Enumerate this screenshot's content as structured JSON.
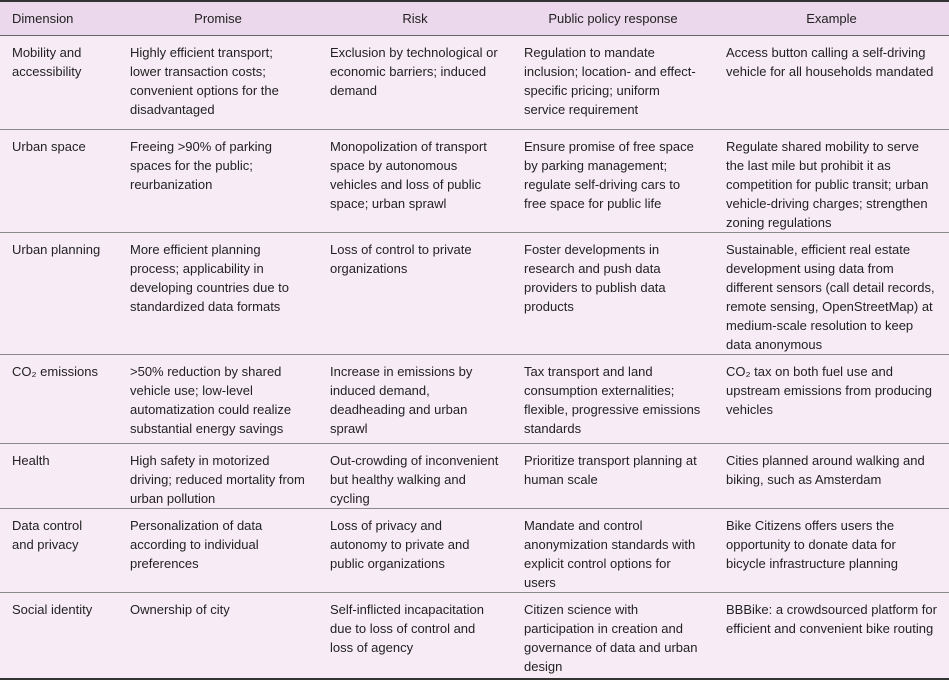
{
  "table": {
    "headers": [
      "Dimension",
      "Promise",
      "Risk",
      "Public policy response",
      "Example"
    ],
    "rows": [
      {
        "dimension": "Mobility and accessibility",
        "promise": "Highly efficient transport; lower transaction costs; convenient options for the disadvantaged",
        "risk": "Exclusion by technological or economic barriers; induced demand",
        "policy": "Regulation to mandate inclusion; location- and effect-specific pricing; uniform service requirement",
        "example": "Access button calling a self-driving vehicle for all households mandated"
      },
      {
        "dimension": "Urban space",
        "promise": "Freeing >90% of parking spaces for the public; reurbanization",
        "risk": "Monopolization of transport space by autonomous vehicles and loss of public space; urban sprawl",
        "policy": "Ensure promise of free space by parking management; regulate self-driving cars to free space for public life",
        "example": "Regulate shared mobility to serve the last mile but prohibit it as competition for public transit; urban vehicle-driving charges; strengthen zoning regulations"
      },
      {
        "dimension": "Urban planning",
        "promise": "More efficient planning process; applicability in developing countries due to standardized data formats",
        "risk": "Loss of control to private organizations",
        "policy": "Foster developments in research and push data providers to publish data products",
        "example": "Sustainable, efficient real estate development using data from different sensors (call detail records, remote sensing, OpenStreetMap) at medium-scale resolution to keep data anonymous"
      },
      {
        "dimension": "CO₂ emissions",
        "promise": ">50% reduction by shared vehicle use; low-level automatization could realize substantial energy savings",
        "risk": "Increase in emissions by induced demand, deadheading and urban sprawl",
        "policy": "Tax transport and land consumption externalities; flexible, progressive emissions standards",
        "example": "CO₂ tax on both fuel use and upstream emissions from producing vehicles"
      },
      {
        "dimension": "Health",
        "promise": "High safety in motorized driving; reduced mortality from urban pollution",
        "risk": "Out-crowding of inconvenient but healthy walking and cycling",
        "policy": "Prioritize transport planning at human scale",
        "example": "Cities planned around walking and biking, such as Amsterdam"
      },
      {
        "dimension": "Data control and privacy",
        "promise": "Personalization of data according to individual preferences",
        "risk": "Loss of privacy and autonomy to private and public organizations",
        "policy": "Mandate and control anonymization standards with explicit control options for users",
        "example": "Bike Citizens offers users the opportunity to donate data for bicycle infrastructure planning"
      },
      {
        "dimension": "Social identity",
        "promise": "Ownership of city",
        "risk": "Self-inflicted incapacitation due to loss of control and loss of agency",
        "policy": "Citizen science with participation in creation and governance of data and urban design",
        "example": "BBBike: a crowdsourced platform for efficient and convenient bike routing"
      }
    ]
  },
  "colors": {
    "header_bg": "#ecd8ec",
    "row_bg": "#f7ecf6"
  }
}
